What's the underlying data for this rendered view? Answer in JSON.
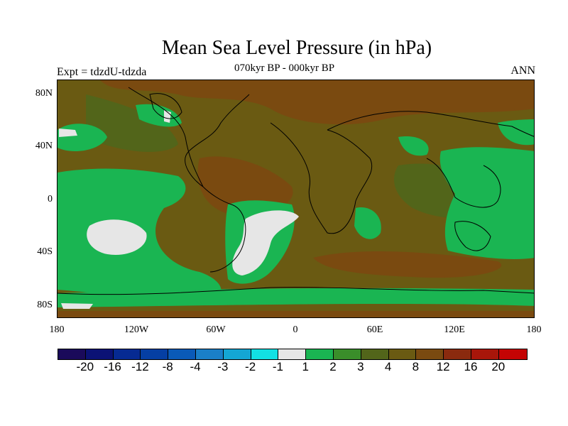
{
  "header": {
    "title": "Mean Sea Level Pressure (in hPa)",
    "subtitle": "070kyr BP - 000kyr BP",
    "experiment": "Expt = tdzdU-tdzda",
    "season": "ANN"
  },
  "axes": {
    "lat_labels": [
      "80N",
      "40N",
      "0",
      "40S",
      "80S"
    ],
    "lon_labels": [
      "180",
      "120W",
      "60W",
      "0",
      "60E",
      "120E",
      "180"
    ]
  },
  "legend": {
    "colors": [
      "#1a0a5a",
      "#0b1275",
      "#062a92",
      "#053fa3",
      "#0a5ab8",
      "#1a7fc8",
      "#14a6d4",
      "#12e0e3",
      "#e6e6e6",
      "#1ab552",
      "#3a8e2a",
      "#52651a",
      "#6a5a12",
      "#7a4a10",
      "#8a2a0e",
      "#a8160a",
      "#c40404"
    ],
    "labels": [
      "-20",
      "-16",
      "-12",
      "-8",
      "-4",
      "-3",
      "-2",
      "-1",
      "1",
      "2",
      "3",
      "4",
      "8",
      "12",
      "16",
      "20"
    ]
  },
  "map_colors": {
    "base": "#6a5a12",
    "dark": "#7a4a10",
    "olive": "#52651a",
    "green": "#1ab552",
    "mid_green": "#3a8e2a",
    "white": "#e6e6e6",
    "cyan": "#12e0e3"
  }
}
